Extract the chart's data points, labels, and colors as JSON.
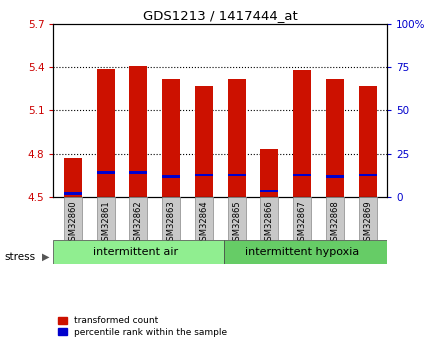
{
  "title": "GDS1213 / 1417444_at",
  "samples": [
    "GSM32860",
    "GSM32861",
    "GSM32862",
    "GSM32863",
    "GSM32864",
    "GSM32865",
    "GSM32866",
    "GSM32867",
    "GSM32868",
    "GSM32869"
  ],
  "red_values": [
    4.77,
    5.39,
    5.41,
    5.32,
    5.27,
    5.32,
    4.83,
    5.38,
    5.32,
    5.27
  ],
  "blue_values": [
    4.52,
    4.67,
    4.67,
    4.64,
    4.65,
    4.65,
    4.54,
    4.65,
    4.64,
    4.65
  ],
  "base": 4.5,
  "ylim_left": [
    4.5,
    5.7
  ],
  "ylim_right": [
    0,
    100
  ],
  "yticks_left": [
    4.5,
    4.8,
    5.1,
    5.4,
    5.7
  ],
  "yticks_right": [
    0,
    25,
    50,
    75,
    100
  ],
  "ytick_right_labels": [
    "0",
    "25",
    "50",
    "75",
    "100%"
  ],
  "group_labels": [
    "intermittent air",
    "intermittent hypoxia"
  ],
  "group_color_1": "#90EE90",
  "group_color_2": "#66CC66",
  "stress_label": "stress",
  "bar_color_red": "#CC1100",
  "bar_color_blue": "#0000CC",
  "bar_width": 0.55,
  "background_color": "#ffffff",
  "tick_label_color_left": "#CC0000",
  "tick_label_color_right": "#0000CC",
  "legend_red": "transformed count",
  "legend_blue": "percentile rank within the sample",
  "sample_bg": "#C8C8C8"
}
